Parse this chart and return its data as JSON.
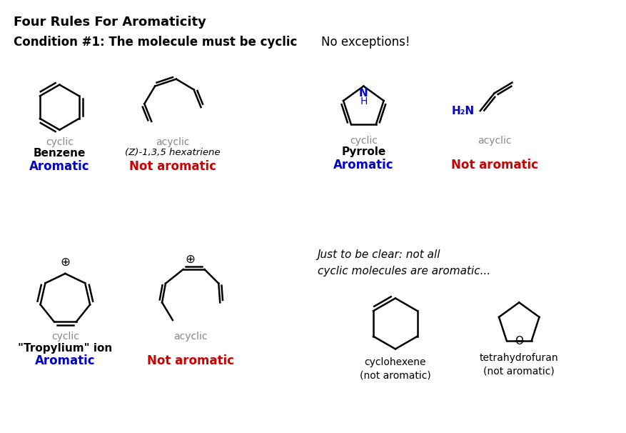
{
  "title": "Four Rules For Aromaticity",
  "condition": "Condition #1: The molecule must be cyclic",
  "no_exceptions": "No exceptions!",
  "bg_color": "#ffffff",
  "title_fontsize": 13,
  "condition_fontsize": 12,
  "italic_text": "Just to be clear: not all\ncyclic molecules are aromatic...",
  "colors": {
    "black": "#000000",
    "gray": "#888888",
    "blue": "#0000cc",
    "red": "#cc0000"
  }
}
